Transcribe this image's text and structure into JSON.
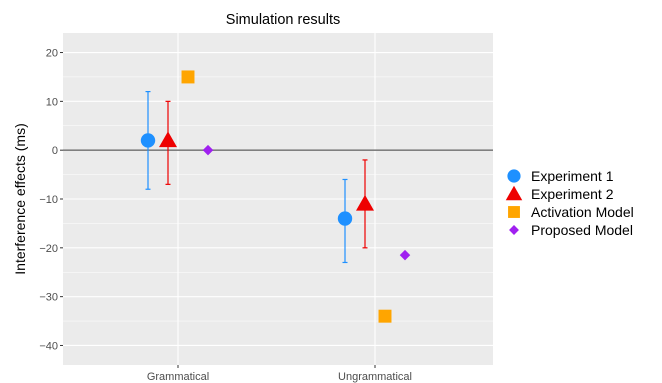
{
  "chart_data": {
    "type": "scatter",
    "title": "Simulation results",
    "xlabel": "",
    "ylabel": "Interference effects (ms)",
    "categories": [
      "Grammatical",
      "Ungrammatical"
    ],
    "ylim": [
      -44,
      24
    ],
    "yticks": [
      20,
      10,
      0,
      -10,
      -20,
      -30,
      -40
    ],
    "ytick_labels": [
      "20",
      "10",
      "0",
      "−10",
      "−20",
      "−30",
      "−40"
    ],
    "grid": true,
    "reference_line_y": 0,
    "legend_position": "right",
    "series": [
      {
        "name": "Experiment 1",
        "marker": "circle",
        "color": "#1E90FF",
        "values": [
          2,
          -14
        ],
        "ci_lower": [
          -8,
          -23
        ],
        "ci_upper": [
          12,
          -6
        ]
      },
      {
        "name": "Experiment 2",
        "marker": "triangle",
        "color": "#EE0000",
        "values": [
          2,
          -11
        ],
        "ci_lower": [
          -7,
          -20
        ],
        "ci_upper": [
          10,
          -2
        ]
      },
      {
        "name": "Activation Model",
        "marker": "square",
        "color": "#FFA500",
        "values": [
          15,
          -34
        ]
      },
      {
        "name": "Proposed Model",
        "marker": "diamond",
        "color": "#A020F0",
        "values": [
          0,
          -21.5
        ]
      }
    ]
  }
}
